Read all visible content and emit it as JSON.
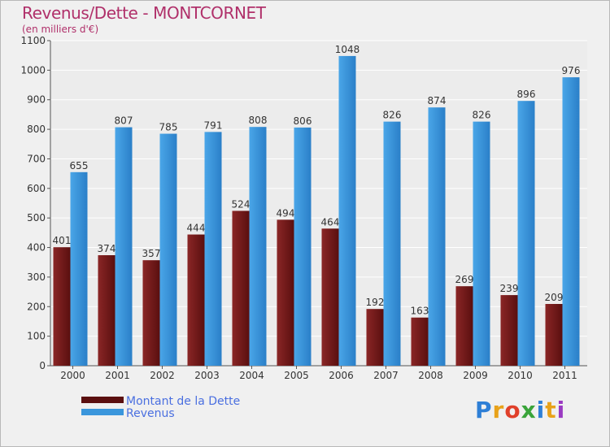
{
  "header": {
    "title": "Revenus/Dette - MONTCORNET",
    "subtitle": "(en milliers d'€)"
  },
  "chart_data": {
    "type": "bar",
    "categories": [
      "2000",
      "2001",
      "2002",
      "2003",
      "2004",
      "2005",
      "2006",
      "2007",
      "2008",
      "2009",
      "2010",
      "2011"
    ],
    "series": [
      {
        "name": "Montant de la Dette",
        "values": [
          401,
          374,
          357,
          444,
          524,
          494,
          464,
          192,
          163,
          269,
          239,
          209
        ],
        "color": "#7a1c1c"
      },
      {
        "name": "Revenus",
        "values": [
          655,
          807,
          785,
          791,
          808,
          806,
          1048,
          826,
          874,
          826,
          896,
          976
        ],
        "color": "#3a96dc"
      }
    ],
    "title": "Revenus/Dette - MONTCORNET",
    "ylim": [
      0,
      1100
    ],
    "yticks": [
      0,
      100,
      200,
      300,
      400,
      500,
      600,
      700,
      800,
      900,
      1000,
      1100
    ],
    "grid": true,
    "legend": "bottom-left"
  },
  "legend": {
    "items": [
      {
        "label": "Montant de la Dette",
        "color": "#5a0f0f"
      },
      {
        "label": "Revenus",
        "color": "#3a96dc"
      }
    ]
  },
  "logo": {
    "letters": [
      "P",
      "r",
      "o",
      "x",
      "i",
      "t",
      "i"
    ],
    "colors": [
      "#2e7fd6",
      "#e8a21a",
      "#e0402a",
      "#3aa43a",
      "#2e7fd6",
      "#e8a21a",
      "#9a3ac2"
    ]
  }
}
